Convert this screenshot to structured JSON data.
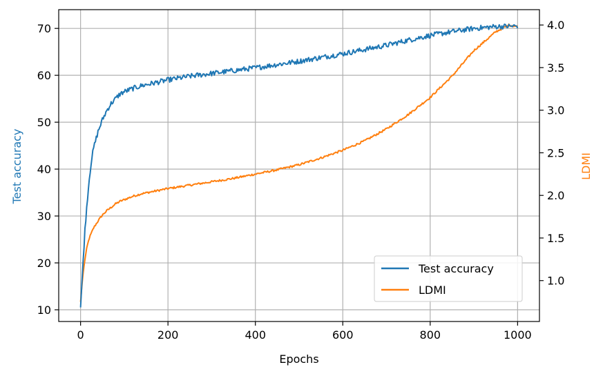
{
  "chart_data": {
    "type": "line",
    "xlabel": "Epochs",
    "ylabel_left": "Test accuracy",
    "ylabel_right": "LDMI",
    "xlim": [
      -50,
      1050
    ],
    "ylim_left": [
      7.5,
      74
    ],
    "ylim_right": [
      0.52,
      4.18
    ],
    "x_ticks": [
      0,
      200,
      400,
      600,
      800,
      1000
    ],
    "y_left_ticks": [
      10,
      20,
      30,
      40,
      50,
      60,
      70
    ],
    "y_right_ticks": [
      1.0,
      1.5,
      2.0,
      2.5,
      3.0,
      3.5,
      4.0
    ],
    "y_right_tick_labels": [
      "1.0",
      "1.5",
      "2.0",
      "2.5",
      "3.0",
      "3.5",
      "4.0"
    ],
    "grid": true,
    "legend_position": "lower-right",
    "series": [
      {
        "name": "Test accuracy",
        "axis": "left",
        "color": "#1f77b4",
        "x": [
          0,
          5,
          10,
          15,
          20,
          25,
          30,
          40,
          50,
          60,
          70,
          80,
          90,
          100,
          120,
          140,
          160,
          180,
          200,
          250,
          300,
          350,
          400,
          450,
          500,
          550,
          600,
          650,
          700,
          750,
          800,
          850,
          900,
          950,
          1000
        ],
        "y": [
          10.5,
          19,
          27,
          33,
          38,
          42,
          44.5,
          48,
          50.5,
          52.5,
          54,
          55,
          56,
          56.5,
          57.2,
          57.8,
          58.2,
          58.6,
          59,
          59.8,
          60.4,
          61,
          61.6,
          62.3,
          63,
          63.8,
          64.6,
          65.5,
          66.4,
          67.5,
          68.5,
          69.3,
          70,
          70.4,
          70.5
        ]
      },
      {
        "name": "LDMI",
        "axis": "right",
        "color": "#ff7f0e",
        "x": [
          0,
          5,
          10,
          15,
          20,
          30,
          40,
          50,
          60,
          70,
          80,
          90,
          100,
          120,
          140,
          160,
          180,
          200,
          250,
          300,
          350,
          400,
          450,
          500,
          550,
          600,
          650,
          700,
          750,
          800,
          850,
          900,
          950,
          980,
          1000
        ],
        "y": [
          0.75,
          1.05,
          1.25,
          1.4,
          1.5,
          1.62,
          1.7,
          1.77,
          1.82,
          1.86,
          1.9,
          1.93,
          1.95,
          1.99,
          2.02,
          2.04,
          2.06,
          2.08,
          2.12,
          2.16,
          2.2,
          2.25,
          2.3,
          2.36,
          2.44,
          2.53,
          2.64,
          2.78,
          2.95,
          3.15,
          3.4,
          3.7,
          3.92,
          4.0,
          3.98
        ]
      }
    ]
  }
}
